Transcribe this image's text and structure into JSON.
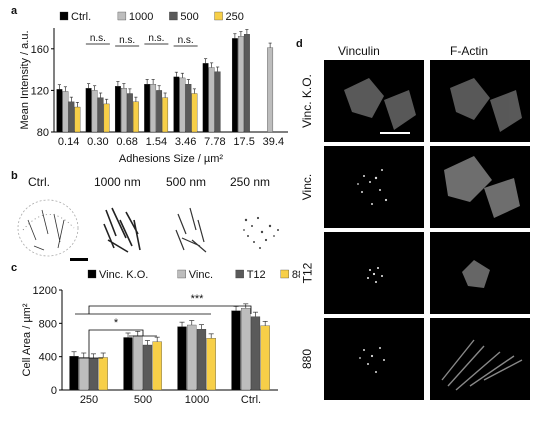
{
  "panels": {
    "a": "a",
    "b": "b",
    "c": "c",
    "d": "d"
  },
  "colors": {
    "black": "#000000",
    "light_gray": "#bdbdbd",
    "dark_gray": "#5a5a5a",
    "yellow": "#f7cf48"
  },
  "chart_data": [
    {
      "id": "a",
      "type": "bar",
      "title": "",
      "ylabel": "Mean Intensity / a.u.",
      "xlabel": "Adhesions Size / µm²",
      "yticks": [
        "80",
        "120",
        "160"
      ],
      "ylim": [
        80,
        180
      ],
      "categories": [
        "0.14",
        "0.30",
        "0.68",
        "1.54",
        "3.46",
        "7.78",
        "17.5",
        "39.4"
      ],
      "legend": [
        "Ctrl.",
        "1000",
        "500",
        "250"
      ],
      "series": [
        {
          "name": "Ctrl.",
          "color": "#000000",
          "values": [
            121,
            122,
            124,
            126,
            133,
            146,
            170,
            null
          ]
        },
        {
          "name": "1000",
          "color": "#bdbdbd",
          "values": [
            119,
            120,
            122,
            126,
            132,
            142,
            172,
            161
          ]
        },
        {
          "name": "500",
          "color": "#5a5a5a",
          "values": [
            109,
            113,
            117,
            120,
            126,
            138,
            174,
            null
          ]
        },
        {
          "name": "250",
          "color": "#f7cf48",
          "values": [
            104,
            107,
            109,
            113,
            117,
            null,
            null,
            null
          ]
        }
      ],
      "annotations": [
        "n.s.",
        "n.s.",
        "n.s.",
        "n.s."
      ]
    },
    {
      "id": "c",
      "type": "bar",
      "title": "",
      "ylabel": "Cell Area / µm²",
      "xlabel": "",
      "yticks": [
        "0",
        "400",
        "800",
        "1200"
      ],
      "ylim": [
        0,
        1200
      ],
      "categories": [
        "250",
        "500",
        "1000",
        "Ctrl."
      ],
      "legend": [
        "Vinc. K.O.",
        "Vinc.",
        "T12",
        "880"
      ],
      "series": [
        {
          "name": "Vinc. K.O.",
          "color": "#000000",
          "values": [
            405,
            630,
            760,
            950
          ]
        },
        {
          "name": "Vinc.",
          "color": "#bdbdbd",
          "values": [
            390,
            650,
            780,
            980
          ]
        },
        {
          "name": "T12",
          "color": "#5a5a5a",
          "values": [
            380,
            540,
            730,
            880
          ]
        },
        {
          "name": "880",
          "color": "#f7cf48",
          "values": [
            390,
            580,
            620,
            770
          ]
        }
      ],
      "annotations": [
        "***",
        "*"
      ]
    }
  ],
  "panel_b": {
    "labels": [
      "Ctrl.",
      "1000 nm",
      "500 nm",
      "250 nm"
    ]
  },
  "panel_d": {
    "column_headers": [
      "Vinculin",
      "F-Actin"
    ],
    "row_labels": [
      "Vinc. K.O.",
      "Vinc.",
      "T12",
      "880"
    ]
  }
}
